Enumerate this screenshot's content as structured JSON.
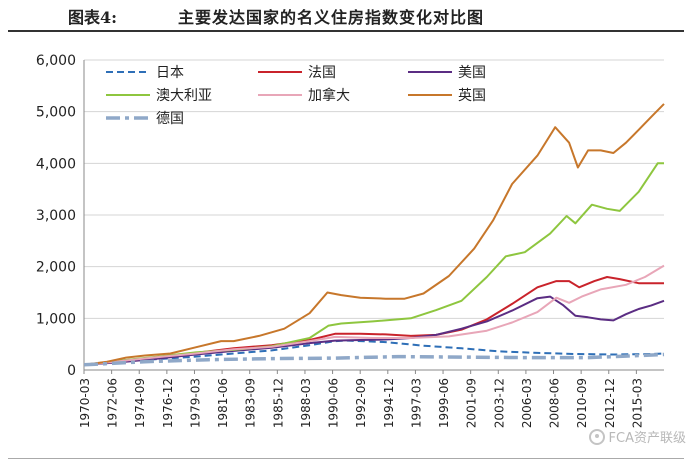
{
  "title": {
    "prefix": "图表4:",
    "text": "主要发达国家的名义住房指数变化对比图"
  },
  "watermark": "FCA资产联级",
  "chart_data": {
    "type": "line",
    "title": "",
    "xlabel": "",
    "ylabel": "",
    "ylim": [
      0,
      6000
    ],
    "yticks": [
      0,
      1000,
      2000,
      3000,
      4000,
      5000,
      6000
    ],
    "ytick_labels": [
      "0",
      "1,000",
      "2,000",
      "3,000",
      "4,000",
      "5,000",
      "6,000"
    ],
    "xlim": [
      1970.17,
      2016.0
    ],
    "x_tick_labels": [
      "1970-03",
      "1972-06",
      "1974-09",
      "1976-12",
      "1979-03",
      "1981-06",
      "1983-09",
      "1985-12",
      "1988-03",
      "1990-06",
      "1992-09",
      "1994-12",
      "1997-03",
      "1999-06",
      "2001-09",
      "2003-12",
      "2006-03",
      "2008-06",
      "2010-09",
      "2012-12",
      "2015-03"
    ],
    "grid": true,
    "legend_position": "top-left",
    "series": [
      {
        "name": "日本",
        "color": "#2e6fb7",
        "style": "dashed",
        "x": [
          1970.17,
          1973,
          1976,
          1979,
          1982,
          1985,
          1988,
          1990,
          1991,
          1994,
          1997,
          2000,
          2003,
          2006,
          2009,
          2012,
          2015,
          2016
        ],
        "y": [
          100,
          160,
          210,
          260,
          320,
          380,
          480,
          560,
          570,
          540,
          470,
          420,
          360,
          330,
          310,
          300,
          310,
          320
        ]
      },
      {
        "name": "法国",
        "color": "#c9232b",
        "style": "solid",
        "x": [
          1970.17,
          1973,
          1976,
          1979,
          1982,
          1985,
          1988,
          1990,
          1992,
          1994,
          1996,
          1998,
          2000,
          2002,
          2004,
          2006,
          2007.5,
          2008.5,
          2009.3,
          2010.5,
          2011.5,
          2012.5,
          2014,
          2016
        ],
        "y": [
          100,
          180,
          250,
          330,
          420,
          480,
          580,
          700,
          700,
          690,
          660,
          680,
          780,
          980,
          1280,
          1600,
          1720,
          1720,
          1600,
          1720,
          1800,
          1760,
          1680,
          1680
        ]
      },
      {
        "name": "美国",
        "color": "#5b2d83",
        "style": "solid",
        "x": [
          1970.17,
          1973,
          1976,
          1979,
          1982,
          1985,
          1988,
          1990,
          1992,
          1994,
          1996,
          1998,
          2000,
          2002,
          2004,
          2006,
          2007,
          2008,
          2009,
          2010,
          2011,
          2012,
          2013,
          2014,
          2015,
          2016
        ],
        "y": [
          100,
          150,
          220,
          300,
          370,
          430,
          520,
          570,
          580,
          590,
          620,
          680,
          800,
          940,
          1150,
          1390,
          1420,
          1260,
          1050,
          1020,
          980,
          960,
          1080,
          1180,
          1250,
          1340
        ]
      },
      {
        "name": "澳大利亚",
        "color": "#8ec63f",
        "style": "solid",
        "x": [
          1970.17,
          1973,
          1976,
          1979,
          1982,
          1985,
          1988,
          1989.5,
          1990.5,
          1993,
          1996,
          1998,
          2000,
          2002,
          2003.5,
          2005,
          2007,
          2008.3,
          2009,
          2010.3,
          2011.5,
          2012.5,
          2014,
          2015.5,
          2016
        ],
        "y": [
          100,
          180,
          260,
          340,
          390,
          460,
          620,
          860,
          900,
          940,
          1000,
          1160,
          1340,
          1800,
          2200,
          2280,
          2640,
          2980,
          2840,
          3200,
          3120,
          3080,
          3450,
          4000,
          4000
        ]
      },
      {
        "name": "加拿大",
        "color": "#e8a6b8",
        "style": "solid",
        "x": [
          1970.17,
          1973,
          1976,
          1979,
          1982,
          1985,
          1988,
          1990,
          1993,
          1996,
          1999,
          2002,
          2004,
          2006,
          2007.5,
          2008.5,
          2009.5,
          2011,
          2013,
          2014.5,
          2016
        ],
        "y": [
          100,
          170,
          250,
          320,
          400,
          450,
          560,
          640,
          620,
          620,
          650,
          760,
          920,
          1120,
          1400,
          1300,
          1420,
          1560,
          1650,
          1800,
          2020
        ]
      },
      {
        "name": "英国",
        "color": "#c7772b",
        "style": "solid",
        "x": [
          1970.17,
          1972,
          1973.5,
          1975,
          1977,
          1979,
          1981,
          1982,
          1984,
          1986,
          1988,
          1989.4,
          1990.5,
          1992,
          1994,
          1995.5,
          1997,
          1999,
          2001,
          2002.5,
          2004,
          2006,
          2007.4,
          2008.5,
          2009.2,
          2010,
          2011,
          2012,
          2013,
          2014,
          2015,
          2016
        ],
        "y": [
          100,
          160,
          240,
          280,
          320,
          440,
          560,
          560,
          660,
          800,
          1100,
          1500,
          1450,
          1400,
          1380,
          1380,
          1480,
          1820,
          2350,
          2900,
          3600,
          4150,
          4700,
          4400,
          3920,
          4250,
          4250,
          4200,
          4400,
          4650,
          4900,
          5150
        ]
      },
      {
        "name": "德国",
        "color": "#8fa8c8",
        "style": "dash-dot",
        "x": [
          1970.17,
          1975,
          1980,
          1985,
          1990,
          1995,
          2000,
          2005,
          2010,
          2013,
          2016
        ],
        "y": [
          100,
          160,
          200,
          220,
          230,
          260,
          250,
          240,
          240,
          270,
          300
        ]
      }
    ]
  }
}
